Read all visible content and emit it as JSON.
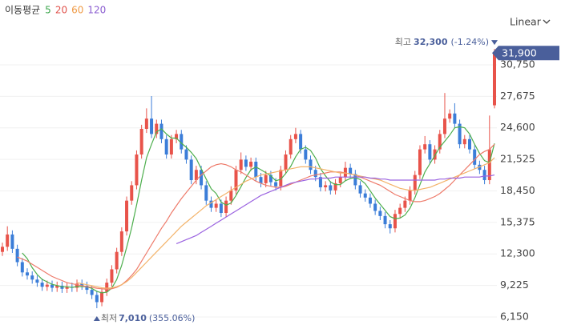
{
  "chart_data": {
    "type": "candlestick",
    "legend_title": "이동평균",
    "scale_label": "Linear",
    "up_color": "#e8534a",
    "down_color": "#3b7dd8",
    "ylim": [
      5370,
      37070
    ],
    "yticks": [
      {
        "value": 6150,
        "label": "6,150"
      },
      {
        "value": 9225,
        "label": "9,225"
      },
      {
        "value": 12300,
        "label": "12,300"
      },
      {
        "value": 15375,
        "label": "15,375"
      },
      {
        "value": 18450,
        "label": "18,450"
      },
      {
        "value": 21525,
        "label": "21,525"
      },
      {
        "value": 24600,
        "label": "24,600"
      },
      {
        "value": 27675,
        "label": "27,675"
      },
      {
        "value": 30750,
        "label": "30,750"
      }
    ],
    "grid": true,
    "current": {
      "value": 31900,
      "label": "31,900"
    },
    "high_note": {
      "label": "최고",
      "value": {
        "value": 32300,
        "label": "32,300"
      },
      "change": "(-1.24%)"
    },
    "low_note": {
      "label": "최저",
      "value": {
        "value": 7010,
        "label": "7,010"
      },
      "change": "(355.06%)"
    },
    "open": [
      12500,
      13000,
      14200,
      12800,
      11500,
      10500,
      10200,
      9800,
      9500,
      9100,
      9300,
      9000,
      9200,
      8900,
      9100,
      9000,
      9400,
      9200,
      8800,
      8300,
      7600,
      8600,
      9500,
      10800,
      12500,
      14500,
      17500,
      19000,
      22000,
      24500,
      25500,
      24000,
      25000,
      23500,
      22000,
      23500,
      24000,
      22500,
      21500,
      19500,
      20500,
      19000,
      17500,
      16800,
      17200,
      16300,
      17500,
      18500,
      20500,
      21500,
      20800,
      21300,
      19800,
      19200,
      20000,
      19300,
      18900,
      20500,
      22000,
      23500,
      24000,
      22500,
      21500,
      20500,
      19800,
      18800,
      19000,
      18500,
      19200,
      19800,
      20700,
      20100,
      19000,
      18200,
      17800,
      17200,
      16500,
      16000,
      15200,
      14800,
      16200,
      16800,
      17500,
      18500,
      20000,
      22500,
      23000,
      21500,
      22500,
      24000,
      25500,
      26000,
      25000,
      23000,
      23500,
      22500,
      21000,
      20500,
      19500,
      26800
    ],
    "high": [
      13400,
      15000,
      14600,
      13200,
      11900,
      10900,
      10600,
      10200,
      9900,
      9700,
      9700,
      9600,
      9600,
      9500,
      9500,
      9800,
      9800,
      9600,
      9200,
      8700,
      9000,
      9900,
      11200,
      12900,
      14900,
      17900,
      19400,
      22400,
      24900,
      26500,
      27700,
      25400,
      25400,
      23900,
      23900,
      24400,
      24400,
      22900,
      21900,
      20900,
      20900,
      19400,
      17900,
      17600,
      17600,
      17900,
      18900,
      20900,
      22200,
      21900,
      21700,
      21700,
      20200,
      20400,
      20400,
      19700,
      20900,
      22400,
      23900,
      24600,
      24400,
      22900,
      21900,
      20900,
      20200,
      19400,
      19400,
      19600,
      20200,
      21300,
      21100,
      20500,
      19400,
      18600,
      18200,
      17600,
      16900,
      16400,
      15600,
      16600,
      17200,
      17900,
      18900,
      20400,
      22900,
      23800,
      23400,
      22900,
      24400,
      28000,
      26400,
      27000,
      25400,
      23900,
      23900,
      22900,
      21400,
      20900,
      25800,
      32300
    ],
    "low": [
      12100,
      12600,
      12400,
      11100,
      10100,
      9800,
      9400,
      9100,
      8700,
      8700,
      8600,
      8600,
      8500,
      8500,
      8600,
      8600,
      8800,
      8400,
      7900,
      7010,
      7200,
      8200,
      9100,
      10400,
      12100,
      14100,
      17100,
      18600,
      21600,
      24100,
      23600,
      23600,
      23100,
      21600,
      21600,
      23100,
      22100,
      21100,
      19100,
      19100,
      18600,
      17100,
      16400,
      16400,
      15900,
      15900,
      17100,
      18100,
      20100,
      20400,
      20400,
      19400,
      18800,
      18800,
      18900,
      18500,
      18500,
      20100,
      21600,
      23100,
      22100,
      21100,
      20100,
      19400,
      18400,
      18400,
      18100,
      18100,
      18800,
      19400,
      19700,
      18600,
      17800,
      17400,
      16800,
      16100,
      15600,
      14800,
      14300,
      14400,
      15800,
      16400,
      17100,
      18100,
      19600,
      22100,
      21100,
      21100,
      22100,
      23600,
      25100,
      24600,
      22600,
      22600,
      22100,
      20600,
      20100,
      19100,
      19100,
      26500
    ],
    "close": [
      13000,
      14200,
      12800,
      11500,
      10500,
      10200,
      9800,
      9500,
      9100,
      9300,
      9000,
      9200,
      8900,
      9100,
      9000,
      9400,
      9200,
      8800,
      8300,
      7600,
      8600,
      9500,
      10800,
      12500,
      14500,
      17500,
      19000,
      22000,
      24500,
      25500,
      24000,
      25000,
      23500,
      22000,
      23500,
      24000,
      22500,
      21500,
      19500,
      20500,
      19000,
      17500,
      16800,
      17200,
      16300,
      17500,
      18500,
      20500,
      21500,
      20800,
      21300,
      19800,
      19200,
      20000,
      19300,
      18900,
      20500,
      22000,
      23500,
      24000,
      22500,
      21500,
      20500,
      19800,
      18800,
      19000,
      18500,
      19200,
      19800,
      20700,
      20100,
      19000,
      18200,
      17800,
      17200,
      16500,
      16000,
      15200,
      14800,
      16200,
      16800,
      17500,
      18500,
      20000,
      22500,
      23000,
      21500,
      22500,
      24000,
      25500,
      26000,
      25000,
      23000,
      23500,
      22500,
      21000,
      20500,
      19500,
      22500,
      31900
    ],
    "series": [
      {
        "name": "5",
        "color": "#4cae4c",
        "label_color": "#3aa64b",
        "values": [
          null,
          null,
          null,
          null,
          12400,
          11840,
          10960,
          10300,
          9820,
          9580,
          9340,
          9220,
          9100,
          9100,
          9040,
          9120,
          9120,
          9100,
          8940,
          8660,
          8500,
          8560,
          8960,
          9800,
          11180,
          12960,
          14860,
          17100,
          19500,
          21700,
          23000,
          24200,
          24500,
          24000,
          23600,
          23600,
          23100,
          22700,
          22200,
          21600,
          20600,
          19600,
          18660,
          18200,
          17360,
          17060,
          17260,
          18000,
          18860,
          19760,
          20520,
          20780,
          20520,
          20220,
          19920,
          19440,
          19580,
          20140,
          20840,
          21780,
          22500,
          22700,
          22400,
          21660,
          20620,
          19920,
          19320,
          19060,
          19060,
          19440,
          19660,
          19760,
          19560,
          19160,
          18460,
          17740,
          17140,
          16540,
          15940,
          15740,
          15800,
          16100,
          16760,
          17800,
          19060,
          20300,
          21100,
          21900,
          22700,
          23300,
          23900,
          24600,
          24700,
          24600,
          24000,
          23000,
          22100,
          21400,
          21200,
          23080
        ]
      },
      {
        "name": "20",
        "color": "#ee7b6b",
        "label_color": "#e0524b",
        "values": [
          null,
          null,
          null,
          12000,
          11800,
          11600,
          11300,
          11000,
          10700,
          10400,
          10100,
          9900,
          9700,
          9500,
          9400,
          9300,
          9200,
          9100,
          9050,
          8950,
          8900,
          8850,
          8900,
          9050,
          9300,
          9700,
          10200,
          10800,
          11600,
          12400,
          13200,
          14000,
          14800,
          15500,
          16300,
          17000,
          17700,
          18300,
          18900,
          19500,
          20000,
          20400,
          20800,
          21000,
          21100,
          21000,
          20800,
          20500,
          20300,
          20000,
          19700,
          19400,
          19200,
          19000,
          18900,
          18800,
          18800,
          18900,
          19100,
          19300,
          19500,
          19700,
          19900,
          20000,
          20100,
          20200,
          20300,
          20300,
          20300,
          20200,
          20100,
          20000,
          19800,
          19600,
          19400,
          19200,
          19000,
          18700,
          18400,
          18100,
          17900,
          17700,
          17500,
          17400,
          17400,
          17500,
          17700,
          17900,
          18200,
          18600,
          19000,
          19500,
          20000,
          20500,
          21000,
          21500,
          22000,
          22300,
          22500,
          23000
        ]
      },
      {
        "name": "60",
        "color": "#f3b36a",
        "label_color": "#ef9a45",
        "values": [
          null,
          null,
          null,
          null,
          null,
          null,
          null,
          null,
          null,
          null,
          null,
          null,
          null,
          null,
          null,
          9500,
          9400,
          9300,
          9200,
          9100,
          9000,
          8950,
          9000,
          9100,
          9300,
          9600,
          10000,
          10500,
          11000,
          11500,
          12000,
          12500,
          13000,
          13500,
          14000,
          14500,
          15000,
          15400,
          15800,
          16200,
          16600,
          17000,
          17300,
          17600,
          17900,
          18200,
          18500,
          18800,
          19100,
          19400,
          19600,
          19800,
          20000,
          20100,
          20200,
          20300,
          20400,
          20500,
          20600,
          20700,
          20800,
          20800,
          20800,
          20700,
          20600,
          20500,
          20400,
          20300,
          20200,
          20200,
          20100,
          20000,
          19900,
          19800,
          19700,
          19600,
          19500,
          19300,
          19100,
          18900,
          18700,
          18600,
          18500,
          18500,
          18600,
          18700,
          18800,
          19000,
          19200,
          19400,
          19600,
          19800,
          20000,
          20200,
          20400,
          20600,
          20800,
          21000,
          21200,
          21700
        ]
      },
      {
        "name": "120",
        "color": "#9b63e0",
        "label_color": "#8a5cd0",
        "values": [
          null,
          null,
          null,
          null,
          null,
          null,
          null,
          null,
          null,
          null,
          null,
          null,
          null,
          null,
          null,
          null,
          null,
          null,
          null,
          null,
          null,
          null,
          null,
          null,
          null,
          null,
          null,
          null,
          null,
          null,
          null,
          null,
          null,
          null,
          null,
          13300,
          13500,
          13700,
          13900,
          14100,
          14400,
          14700,
          15000,
          15300,
          15600,
          15900,
          16200,
          16500,
          16800,
          17100,
          17400,
          17700,
          18000,
          18200,
          18400,
          18600,
          18800,
          19000,
          19200,
          19300,
          19400,
          19500,
          19600,
          19600,
          19700,
          19700,
          19700,
          19800,
          19800,
          19800,
          19800,
          19800,
          19800,
          19800,
          19700,
          19700,
          19600,
          19600,
          19500,
          19500,
          19500,
          19500,
          19500,
          19500,
          19500,
          19500,
          19500,
          19500,
          19600,
          19600,
          19700,
          19700,
          19700,
          19800,
          19800,
          19800,
          19800,
          19900,
          19900,
          20000
        ]
      }
    ]
  }
}
